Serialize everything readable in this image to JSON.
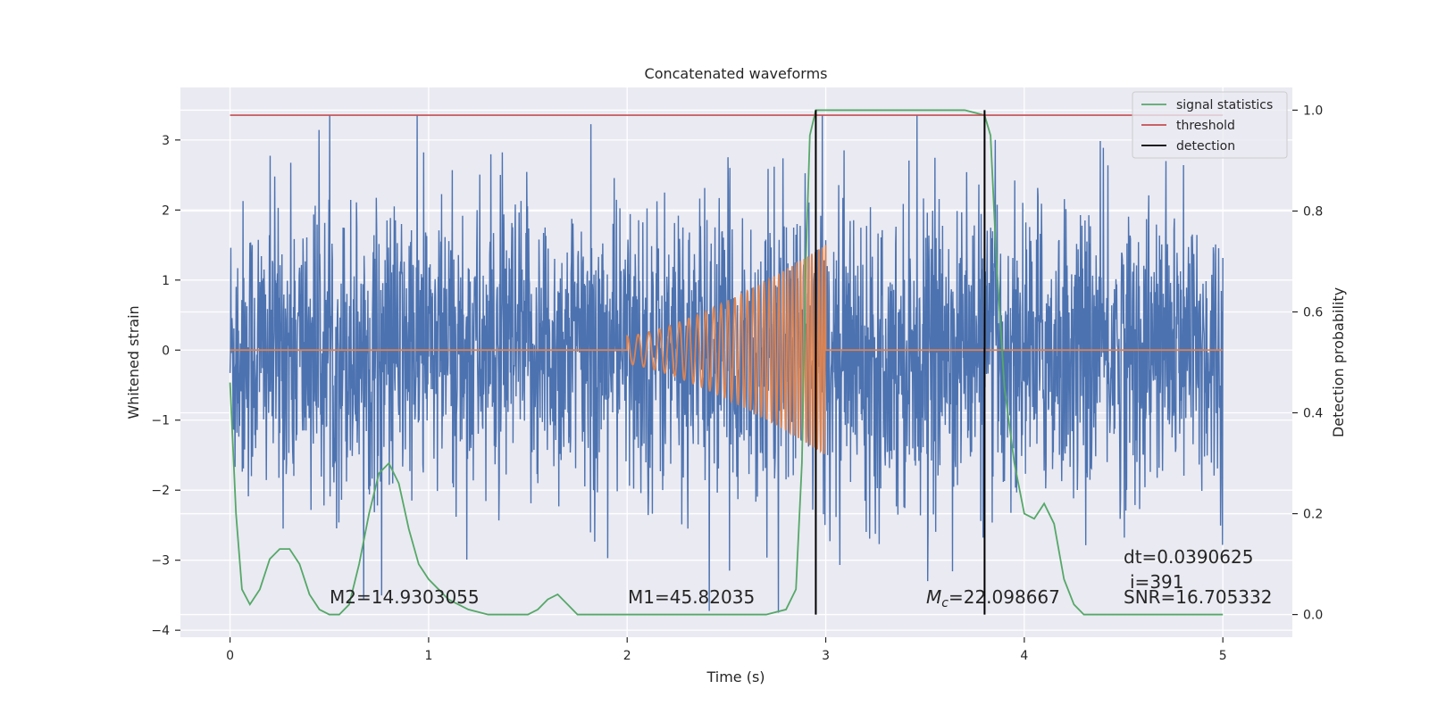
{
  "chart_data": {
    "type": "line",
    "title": "Concatenated waveforms",
    "xlabel": "Time (s)",
    "ylabel": "Whitened strain",
    "y2label": "Detection probability",
    "xlim": [
      -0.25,
      5.35
    ],
    "ylim": [
      -4.1,
      3.75
    ],
    "y2lim": [
      -0.045,
      1.045
    ],
    "xticks": [
      "0",
      "1",
      "2",
      "3",
      "4",
      "5"
    ],
    "yticks": [
      "3",
      "2",
      "1",
      "0",
      "−1",
      "−2",
      "−3",
      "−4"
    ],
    "y2ticks": [
      "1.0",
      "0.8",
      "0.6",
      "0.4",
      "0.2",
      "0.0"
    ],
    "grid": true,
    "legend_position": "top-right",
    "colors": {
      "strain": "#4c72b0",
      "template": "#dd8452",
      "signal_statistics": "#55a868",
      "threshold": "#c44e52",
      "detection": "#000000",
      "background": "#eaeaf2"
    },
    "series": [
      {
        "name": "",
        "axis": "left",
        "description_values": "whitened strain noise, amplitude roughly within [-3.8, 3.4]",
        "x_range": [
          0,
          5
        ]
      },
      {
        "name": "",
        "axis": "left",
        "x_range": [
          0,
          5
        ],
        "chirp_x_range": [
          2,
          3
        ],
        "chirp_peak_amplitude": 1.5
      },
      {
        "name": "signal statistics",
        "axis": "right",
        "x": [
          0,
          0.03,
          0.06,
          0.1,
          0.15,
          0.2,
          0.25,
          0.3,
          0.35,
          0.4,
          0.45,
          0.5,
          0.55,
          0.6,
          0.65,
          0.7,
          0.75,
          0.8,
          0.85,
          0.9,
          0.95,
          1.0,
          1.05,
          1.1,
          1.2,
          1.3,
          1.4,
          1.5,
          1.55,
          1.6,
          1.65,
          1.7,
          1.75,
          1.8,
          2.0,
          2.5,
          2.7,
          2.8,
          2.85,
          2.88,
          2.9,
          2.92,
          2.95,
          3.0,
          3.5,
          3.7,
          3.8,
          3.83,
          3.86,
          3.9,
          3.95,
          4.0,
          4.05,
          4.1,
          4.15,
          4.2,
          4.25,
          4.3,
          4.4,
          4.6,
          5.0
        ],
        "values": [
          0.46,
          0.2,
          0.05,
          0.02,
          0.05,
          0.11,
          0.13,
          0.13,
          0.1,
          0.04,
          0.01,
          0.0,
          0.0,
          0.02,
          0.1,
          0.2,
          0.28,
          0.3,
          0.26,
          0.17,
          0.1,
          0.07,
          0.05,
          0.03,
          0.01,
          0.0,
          0.0,
          0.0,
          0.01,
          0.03,
          0.04,
          0.02,
          0.0,
          0.0,
          0.0,
          0.0,
          0.0,
          0.01,
          0.05,
          0.3,
          0.7,
          0.95,
          1.0,
          1.0,
          1.0,
          1.0,
          0.99,
          0.95,
          0.7,
          0.45,
          0.3,
          0.2,
          0.19,
          0.22,
          0.18,
          0.07,
          0.02,
          0.0,
          0.0,
          0.0,
          0.0
        ]
      },
      {
        "name": "threshold",
        "axis": "right",
        "x": [
          0,
          5
        ],
        "values": [
          0.99,
          0.99
        ]
      },
      {
        "name": "detection",
        "axis": "right",
        "vlines_x": [
          2.95,
          3.8
        ],
        "y_range": [
          0.0,
          1.0
        ]
      }
    ],
    "legend": [
      "signal statistics",
      "threshold",
      "detection"
    ],
    "annotations": {
      "m2": "M2=14.9303055",
      "m1": "M1=45.82035",
      "mc_prefix": "M",
      "mc_sub": "c",
      "mc_value": "=22.098667",
      "dt": "dt=0.0390625",
      "i": "i=391",
      "snr": "SNR=16.705332"
    }
  }
}
